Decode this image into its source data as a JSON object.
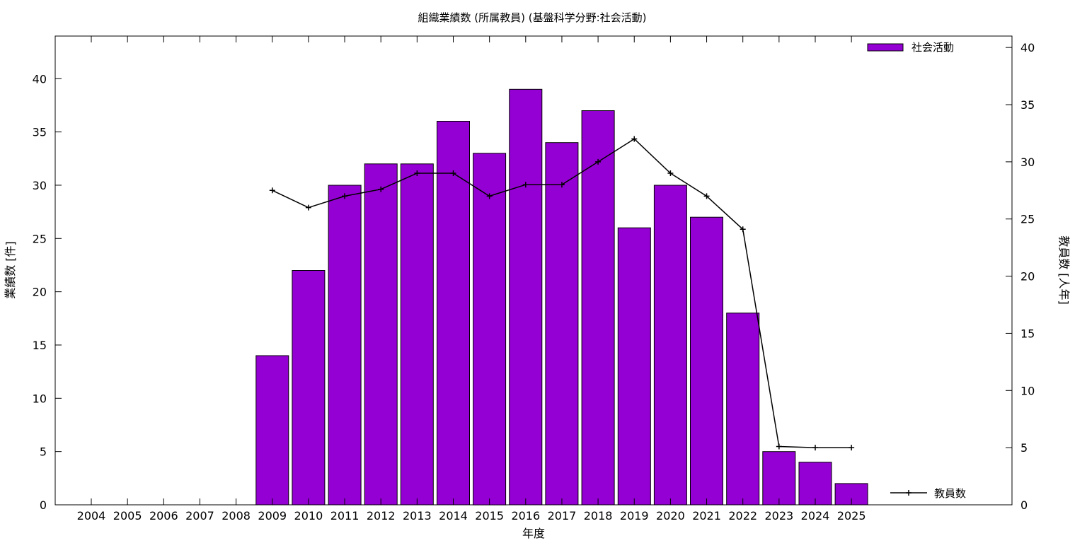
{
  "chart_data": {
    "type": "bar",
    "title": "組織業績数 (所属教員) (基盤科学分野:社会活動)",
    "xlabel": "年度",
    "ylabel": "業績数 [件]",
    "y2label": "教員数 [人年]",
    "categories": [
      "2004",
      "2005",
      "2006",
      "2007",
      "2008",
      "2009",
      "2010",
      "2011",
      "2012",
      "2013",
      "2014",
      "2015",
      "2016",
      "2017",
      "2018",
      "2019",
      "2020",
      "2021",
      "2022",
      "2023",
      "2024",
      "2025"
    ],
    "ylim": [
      0,
      44
    ],
    "yticks": [
      0,
      5,
      10,
      15,
      20,
      25,
      30,
      35,
      40
    ],
    "y2lim": [
      0,
      41
    ],
    "y2ticks": [
      0,
      5,
      10,
      15,
      20,
      25,
      30,
      35,
      40
    ],
    "grid": false,
    "series": [
      {
        "name": "社会活動",
        "type": "bar",
        "axis": "left",
        "color": "#9400D3",
        "values": [
          0,
          0,
          0,
          0,
          0,
          14,
          22,
          30,
          32,
          32,
          36,
          33,
          39,
          34,
          37,
          26,
          30,
          27,
          18,
          5,
          4,
          2
        ]
      },
      {
        "name": "教員数",
        "type": "line",
        "axis": "right",
        "color": "#000000",
        "marker": "+",
        "values": [
          null,
          null,
          null,
          null,
          null,
          27.5,
          26.0,
          27.0,
          27.6,
          29.0,
          29.0,
          27.0,
          28.0,
          28.0,
          30.0,
          32.0,
          29.0,
          27.0,
          24.1,
          5.1,
          5.0,
          5.0
        ]
      }
    ],
    "legend": [
      "top-right",
      "bottom-right"
    ]
  }
}
